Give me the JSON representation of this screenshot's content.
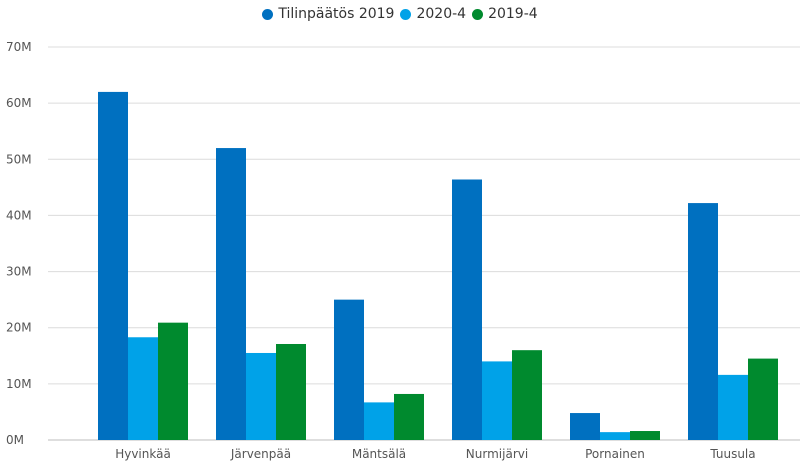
{
  "chart_data": {
    "type": "bar",
    "categories": [
      "Hyvinkää",
      "Järvenpää",
      "Mäntsälä",
      "Nurmijärvi",
      "Pornainen",
      "Tuusula"
    ],
    "series": [
      {
        "name": "Tilinpäätös 2019",
        "color": "#0070c0",
        "values": [
          62.0,
          52.0,
          25.0,
          46.4,
          4.8,
          42.2
        ]
      },
      {
        "name": "2020-4",
        "color": "#00a2e8",
        "values": [
          18.3,
          15.5,
          6.7,
          14.0,
          1.4,
          11.6
        ]
      },
      {
        "name": "2019-4",
        "color": "#008a2e",
        "values": [
          20.9,
          17.1,
          8.2,
          16.0,
          1.6,
          14.5
        ]
      }
    ],
    "yticks": [
      0,
      10,
      20,
      30,
      40,
      50,
      60,
      70
    ],
    "ytick_labels": [
      "0M",
      "10M",
      "20M",
      "30M",
      "40M",
      "50M",
      "60M",
      "70M"
    ],
    "ylim": [
      0,
      70
    ],
    "grid": true,
    "legend_position": "top-center"
  }
}
